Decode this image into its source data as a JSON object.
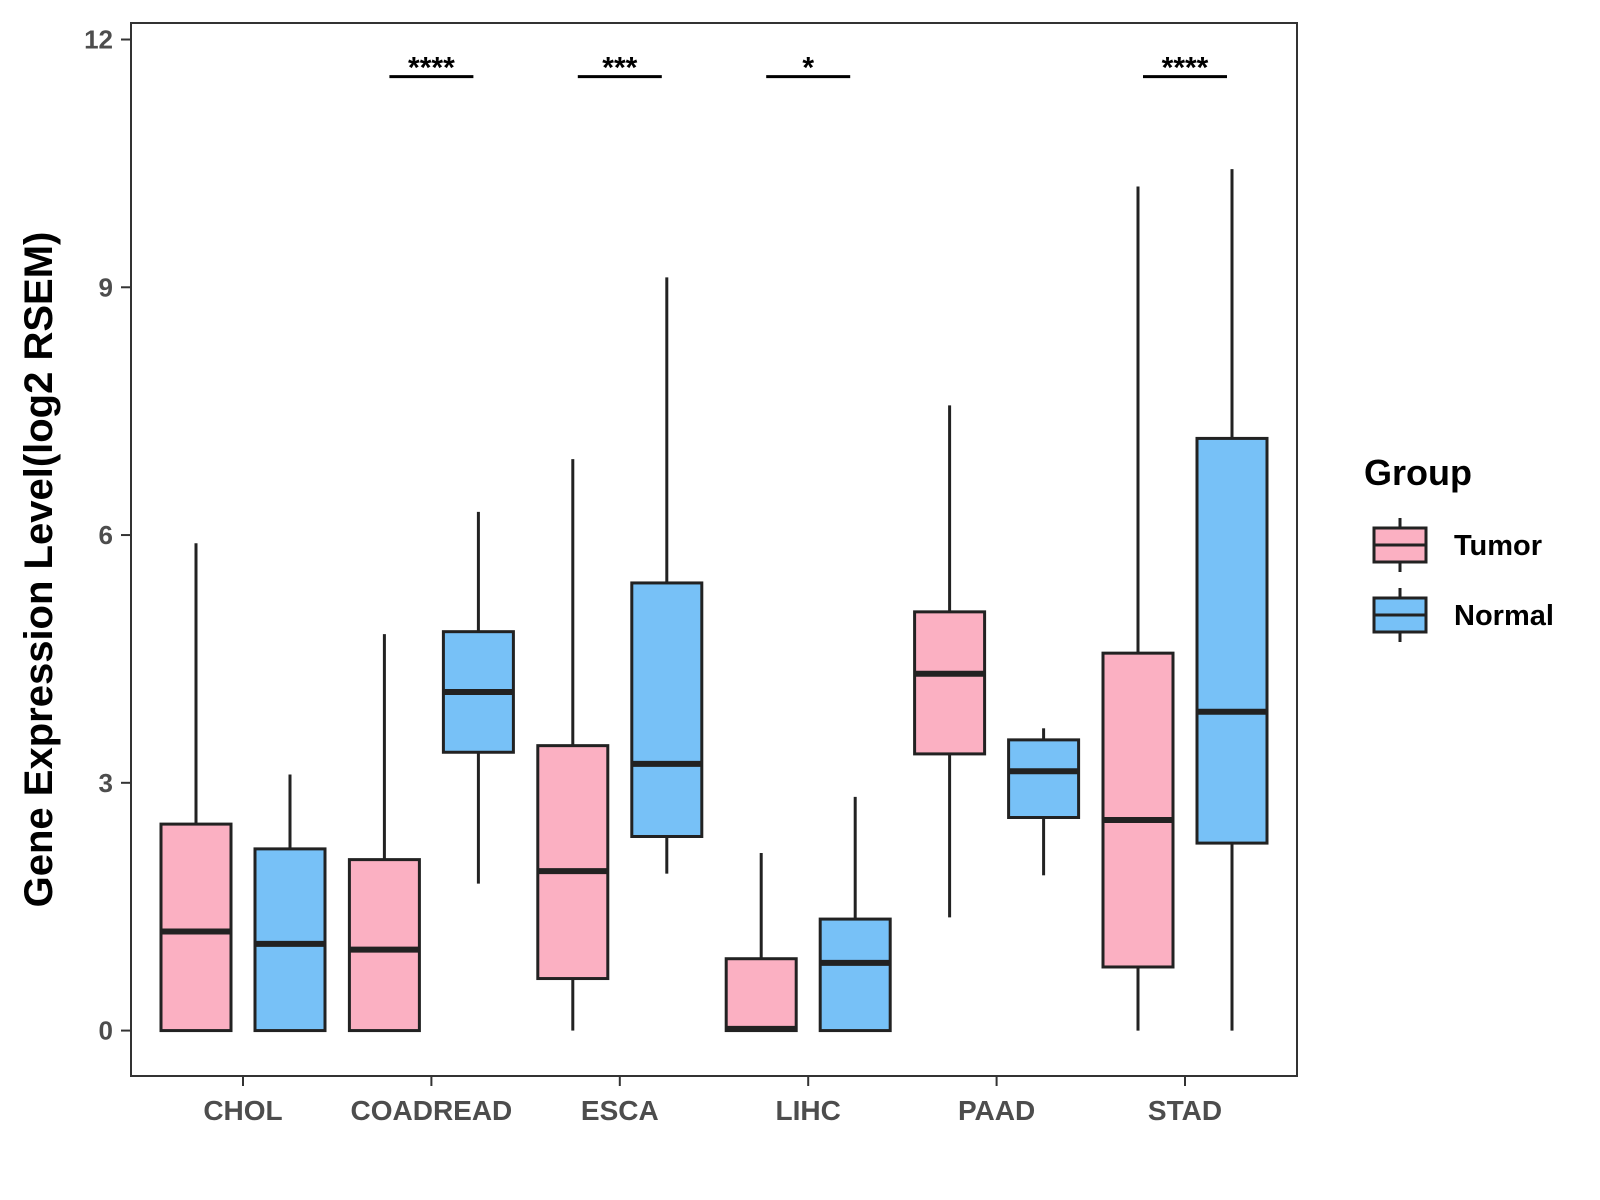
{
  "chart_data": {
    "type": "boxplot",
    "title": "",
    "xlabel": "",
    "ylabel": "Gene Expression Level(log2 RSEM)",
    "ylim": [
      -0.55,
      12.2
    ],
    "y_ticks": [
      0,
      3,
      6,
      9,
      12
    ],
    "y_tick_labels": [
      "0",
      "3",
      "6",
      "9",
      "12"
    ],
    "grid": false,
    "legend": {
      "title": "Group",
      "position": "right",
      "entries": [
        "Tumor",
        "Normal"
      ]
    },
    "colors": {
      "Tumor": "#fbb0c2",
      "Normal": "#77c1f7",
      "stroke": "#222222",
      "axis": "#333333"
    },
    "categories": [
      "CHOL",
      "COADREAD",
      "ESCA",
      "LIHC",
      "PAAD",
      "STAD"
    ],
    "series": [
      {
        "name": "Tumor",
        "boxes": [
          {
            "min": 0.0,
            "q1": 0.0,
            "median": 1.2,
            "q3": 2.5,
            "max": 5.9
          },
          {
            "min": 0.0,
            "q1": 0.0,
            "median": 0.98,
            "q3": 2.07,
            "max": 4.8
          },
          {
            "min": 0.0,
            "q1": 0.63,
            "median": 1.93,
            "q3": 3.45,
            "max": 6.92
          },
          {
            "min": 0.0,
            "q1": 0.0,
            "median": 0.02,
            "q3": 0.87,
            "max": 2.15
          },
          {
            "min": 1.37,
            "q1": 3.35,
            "median": 4.32,
            "q3": 5.07,
            "max": 7.57
          },
          {
            "min": 0.0,
            "q1": 0.77,
            "median": 2.55,
            "q3": 4.57,
            "max": 10.22
          }
        ]
      },
      {
        "name": "Normal",
        "boxes": [
          {
            "min": 0.0,
            "q1": 0.0,
            "median": 1.05,
            "q3": 2.2,
            "max": 3.1
          },
          {
            "min": 1.78,
            "q1": 3.37,
            "median": 4.1,
            "q3": 4.83,
            "max": 6.28
          },
          {
            "min": 1.9,
            "q1": 2.35,
            "median": 3.23,
            "q3": 5.42,
            "max": 9.12
          },
          {
            "min": 0.0,
            "q1": 0.0,
            "median": 0.82,
            "q3": 1.35,
            "max": 2.83
          },
          {
            "min": 1.88,
            "q1": 2.58,
            "median": 3.14,
            "q3": 3.52,
            "max": 3.66
          },
          {
            "min": 0.0,
            "q1": 2.27,
            "median": 3.86,
            "q3": 7.17,
            "max": 10.43
          }
        ]
      }
    ],
    "significance": [
      {
        "category": "COADREAD",
        "label": "****"
      },
      {
        "category": "ESCA",
        "label": "***"
      },
      {
        "category": "LIHC",
        "label": "*"
      },
      {
        "category": "STAD",
        "label": "****"
      }
    ],
    "significance_y": 11.55
  }
}
